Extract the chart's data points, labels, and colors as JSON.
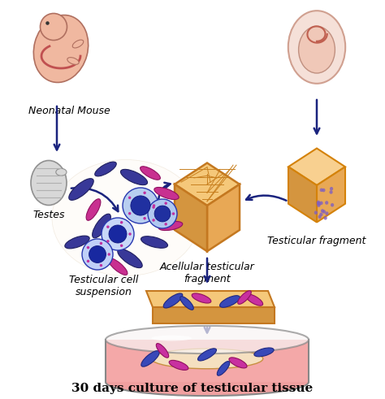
{
  "bg_color": "#ffffff",
  "arrow_color": "#1a237e",
  "title": "30 days culture of testicular tissue",
  "title_fontsize": 11,
  "label_fontsize": 9,
  "labels": {
    "neonatal_mouse": "Neonatal Mouse",
    "testes": "Testes",
    "testicular_fragment": "Testicular fragment",
    "acellular": "Acellular testicular\nfragment",
    "cell_suspension": "Testicular cell\nsuspension"
  },
  "arrow_lw": 1.8,
  "cube_top_color": "#f5c87a",
  "cube_right_color": "#e8a855",
  "cube_left_color": "#d4953f",
  "cube_edge_color": "#c47820",
  "cube_grid_color": "#c8902a",
  "frag_top_color": "#f8d090",
  "frag_right_color": "#f0b060",
  "frag_left_color": "#d89040",
  "frag_edge_color": "#b87020",
  "petri_fill_color": "#f4a8a8",
  "petri_edge_color": "#888888",
  "scaffold_top_color": "#f5c87a",
  "scaffold_bot_color": "#d4953f",
  "scaffold_edge_color": "#c47820",
  "cell_blue_fc": "#3848b8",
  "cell_blue_ec": "#202880",
  "cell_pink_fc": "#d840a0",
  "cell_pink_ec": "#a02070",
  "nucleus_fc": "#c8d8f8",
  "nucleus_core": "#2030a0",
  "testes_fc": "#d8d8d8",
  "testes_ec": "#909090"
}
